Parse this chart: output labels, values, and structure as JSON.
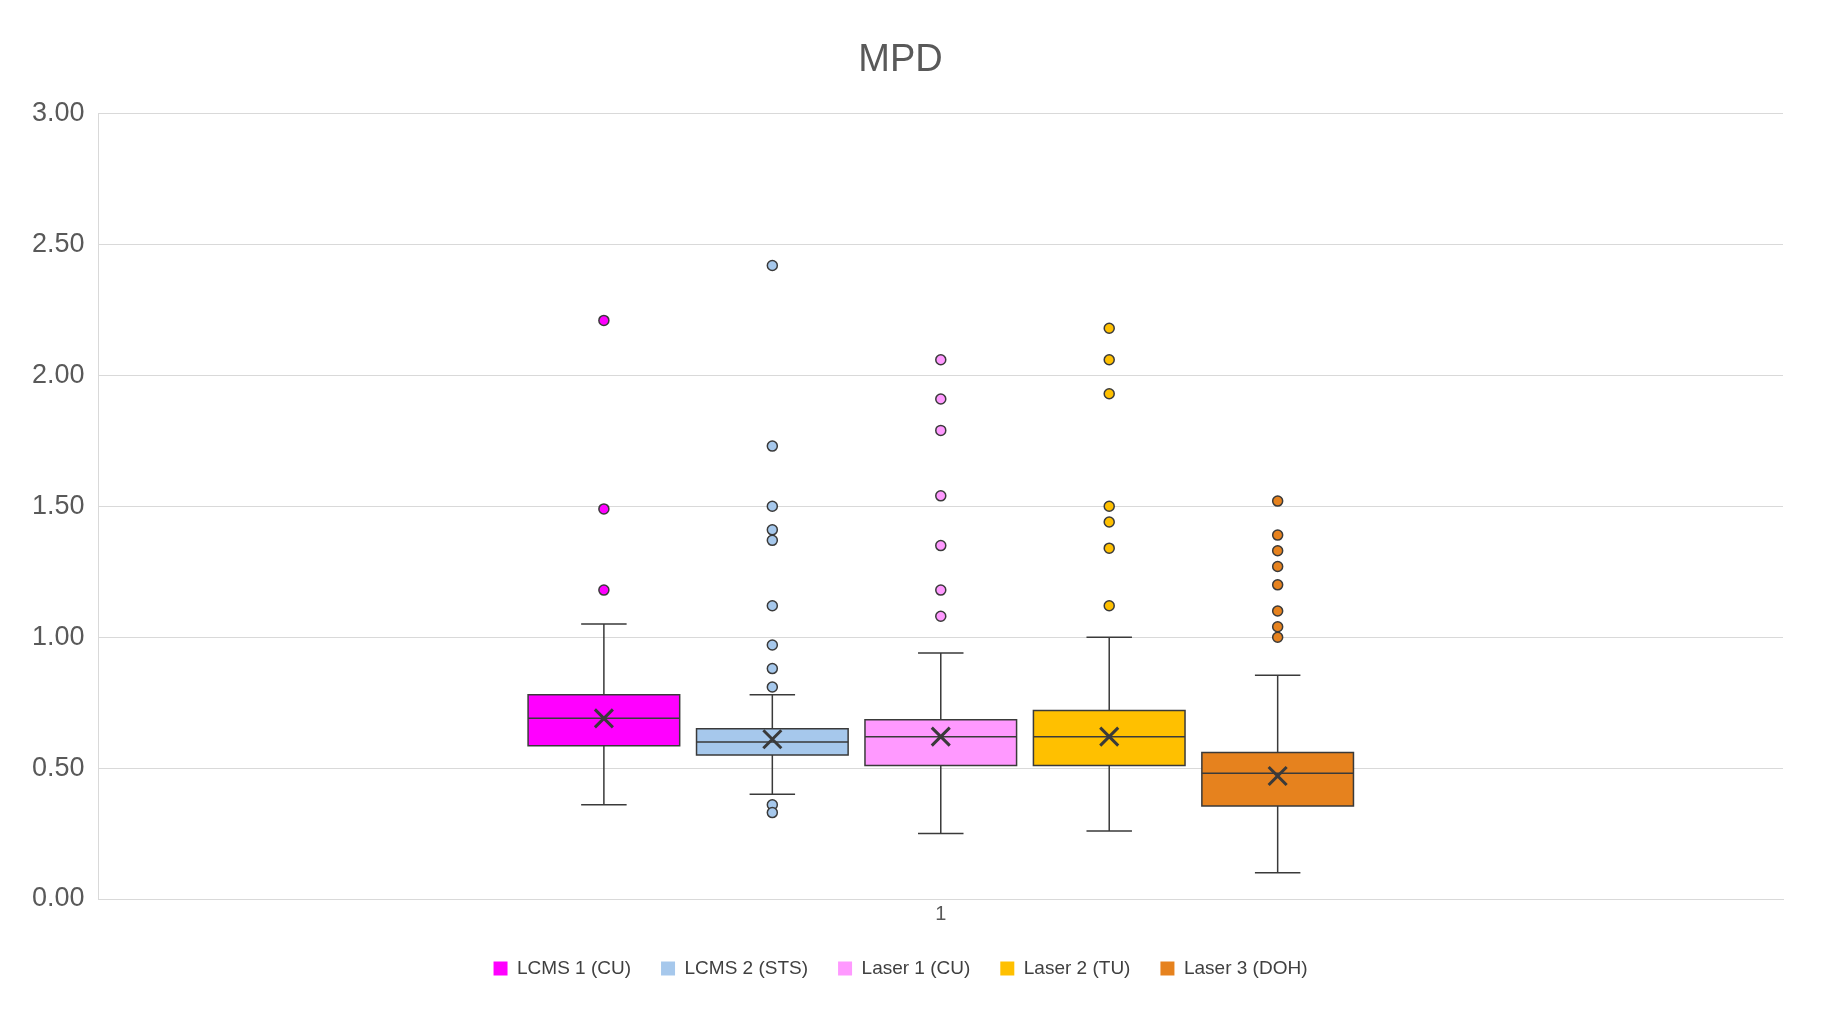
{
  "chart_data": {
    "type": "box",
    "title": "MPD",
    "categories": [
      "1"
    ],
    "ylim": [
      0,
      3
    ],
    "yticks": [
      {
        "value": 0,
        "label": "0.00"
      },
      {
        "value": 0.5,
        "label": "0.50"
      },
      {
        "value": 1,
        "label": "1.00"
      },
      {
        "value": 1.5,
        "label": "1.50"
      },
      {
        "value": 2,
        "label": "2.00"
      },
      {
        "value": 2.5,
        "label": "2.50"
      },
      {
        "value": 3,
        "label": "3.00"
      }
    ],
    "grid": "y",
    "legend": "bottom",
    "marker": "circle",
    "series": [
      {
        "name": "LCMS 1 (CU)",
        "color": "#ff00ff",
        "boxes": [
          {
            "low": 0.36,
            "q1": 0.585,
            "median": 0.69,
            "q3": 0.78,
            "high": 1.05,
            "mean": 0.69,
            "outliers": [
              2.21,
              1.49,
              1.18
            ]
          }
        ]
      },
      {
        "name": "LCMS 2 (STS)",
        "color": "#a6c8ec",
        "boxes": [
          {
            "low": 0.4,
            "q1": 0.55,
            "median": 0.6,
            "q3": 0.65,
            "high": 0.78,
            "mean": 0.61,
            "outliers": [
              2.42,
              1.73,
              1.5,
              1.41,
              1.37,
              1.12,
              0.97,
              0.88,
              0.81,
              0.36,
              0.33
            ]
          }
        ]
      },
      {
        "name": "Laser 1 (CU)",
        "color": "#ff99ff",
        "boxes": [
          {
            "low": 0.25,
            "q1": 0.51,
            "median": 0.62,
            "q3": 0.685,
            "high": 0.94,
            "mean": 0.62,
            "outliers": [
              2.06,
              1.91,
              1.79,
              1.54,
              1.35,
              1.18,
              1.08
            ]
          }
        ]
      },
      {
        "name": "Laser 2 (TU)",
        "color": "#ffc000",
        "boxes": [
          {
            "low": 0.26,
            "q1": 0.51,
            "median": 0.62,
            "q3": 0.72,
            "high": 1.0,
            "mean": 0.62,
            "outliers": [
              2.18,
              2.06,
              1.93,
              1.5,
              1.44,
              1.34,
              1.12
            ]
          }
        ]
      },
      {
        "name": "Laser 3 (DOH)",
        "color": "#e6821e",
        "boxes": [
          {
            "low": 0.1,
            "q1": 0.355,
            "median": 0.48,
            "q3": 0.56,
            "high": 0.855,
            "mean": 0.47,
            "outliers": [
              1.52,
              1.39,
              1.33,
              1.27,
              1.2,
              1.1,
              1.04,
              1.0
            ]
          }
        ]
      }
    ]
  }
}
